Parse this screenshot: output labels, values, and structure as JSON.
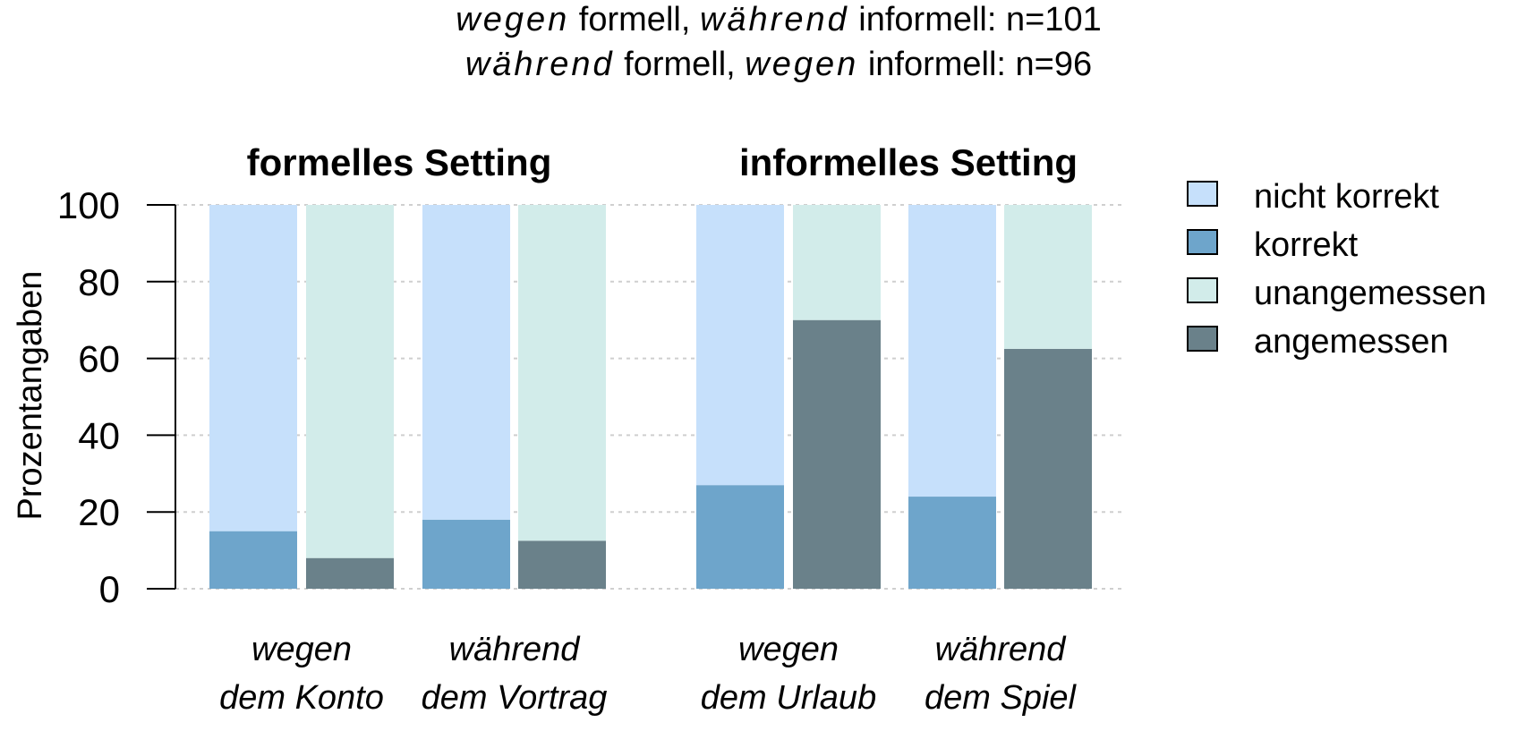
{
  "title": {
    "line1": {
      "w1": "wegen",
      "t1": " formell, ",
      "w2": "während",
      "t2": " informell: n=101"
    },
    "line2": {
      "w1": "während",
      "t1": " formell, ",
      "w2": "wegen",
      "t2": " informell: n=96"
    }
  },
  "legend": {
    "items": [
      {
        "label": "nicht korrekt",
        "color": "#c6e0fb"
      },
      {
        "label": "korrekt",
        "color": "#6ea5cb"
      },
      {
        "label": "unangemessen",
        "color": "#d2ecea"
      },
      {
        "label": "angemessen",
        "color": "#6a818a"
      }
    ]
  },
  "chart_data": {
    "type": "bar",
    "stacked": true,
    "ylabel": "Prozentangaben",
    "ylim": [
      0,
      100
    ],
    "yticks": [
      0,
      20,
      40,
      60,
      80,
      100
    ],
    "grid": true,
    "legend_position": "right",
    "panels": [
      {
        "title": "formelles Setting",
        "groups": [
          {
            "label_line1": "wegen",
            "label_line2": "dem Konto",
            "korrekt": 15,
            "nicht_korrekt": 85,
            "angemessen": 8,
            "unangemessen": 92
          },
          {
            "label_line1": "während",
            "label_line2": "dem Vortrag",
            "korrekt": 18,
            "nicht_korrekt": 82,
            "angemessen": 12.5,
            "unangemessen": 87.5
          }
        ]
      },
      {
        "title": "informelles Setting",
        "groups": [
          {
            "label_line1": "wegen",
            "label_line2": "dem Urlaub",
            "korrekt": 27,
            "nicht_korrekt": 73,
            "angemessen": 70,
            "unangemessen": 30
          },
          {
            "label_line1": "während",
            "label_line2": "dem Spiel",
            "korrekt": 24,
            "nicht_korrekt": 76,
            "angemessen": 62.5,
            "unangemessen": 37.5
          }
        ]
      }
    ]
  }
}
